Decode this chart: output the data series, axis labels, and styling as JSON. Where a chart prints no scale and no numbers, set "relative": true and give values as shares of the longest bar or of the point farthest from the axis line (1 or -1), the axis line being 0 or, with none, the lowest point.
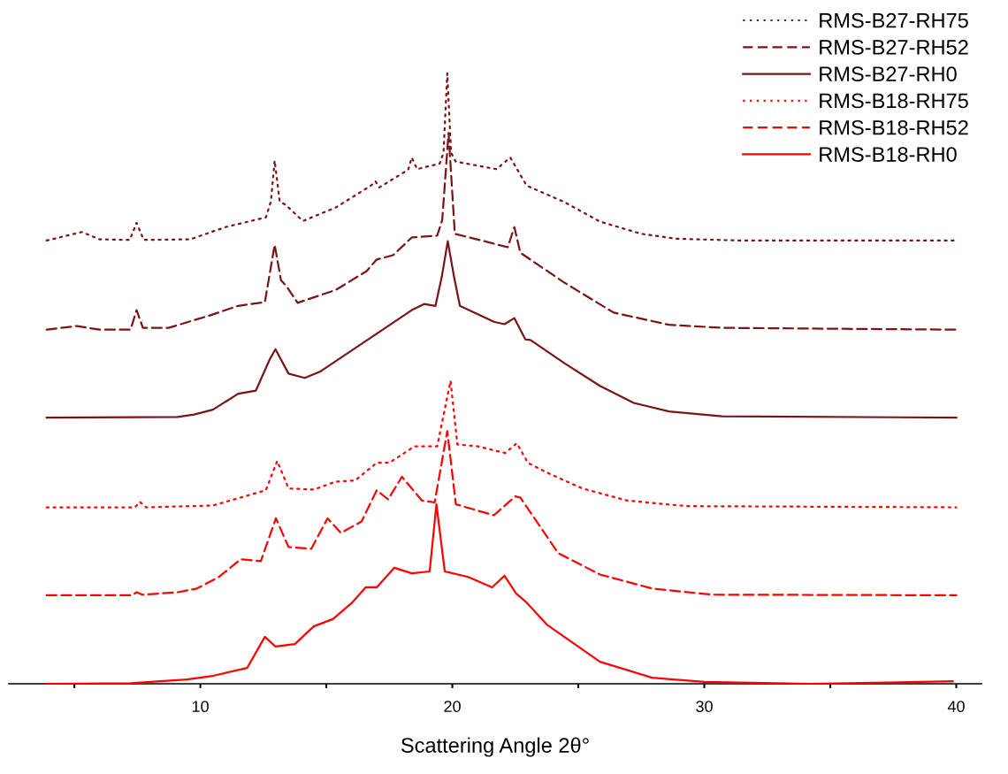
{
  "chart_data": {
    "type": "line",
    "relative": true,
    "xlabel": "Scattering Angle 2θ°",
    "xlim": [
      2.4,
      41.0
    ],
    "xticks": [
      {
        "value": 5,
        "label": null
      },
      10,
      {
        "value": 15,
        "label": null
      },
      20,
      {
        "value": 25,
        "label": null
      },
      30,
      {
        "value": 35,
        "label": null
      },
      40
    ],
    "legend": "top right",
    "grid": false,
    "tick_labels": "x",
    "series": [
      {
        "name": "RMS-B27-RH75",
        "color": "#7b1416",
        "line_style": "dotted",
        "x": [
          3.9,
          5.3,
          6.0,
          7.2,
          7.47,
          7.75,
          9.6,
          11.0,
          12.6,
          12.8,
          12.95,
          13.15,
          13.4,
          14.07,
          15.37,
          16.77,
          16.95,
          17.1,
          18.25,
          18.39,
          18.6,
          19.5,
          19.65,
          19.8,
          19.95,
          20.14,
          20.3,
          21.75,
          22.3,
          22.95,
          24.45,
          25.86,
          27.5,
          28.9,
          31.4,
          40.0
        ],
        "values": [
          0.726,
          0.74,
          0.728,
          0.727,
          0.755,
          0.727,
          0.728,
          0.748,
          0.764,
          0.79,
          0.857,
          0.79,
          0.784,
          0.758,
          0.78,
          0.816,
          0.823,
          0.813,
          0.842,
          0.862,
          0.843,
          0.852,
          0.87,
          1.0,
          0.87,
          0.855,
          0.854,
          0.843,
          0.862,
          0.816,
          0.789,
          0.757,
          0.737,
          0.729,
          0.726,
          0.726
        ]
      },
      {
        "name": "RMS-B27-RH52",
        "color": "#7b1416",
        "line_style": "dashed",
        "x": [
          3.9,
          5.1,
          6.0,
          7.23,
          7.47,
          7.72,
          8.74,
          10.35,
          11.5,
          12.56,
          12.95,
          13.2,
          13.44,
          13.86,
          15.37,
          16.6,
          17.0,
          17.65,
          18.39,
          19.4,
          19.6,
          19.85,
          20.1,
          21.26,
          22.2,
          22.46,
          22.7,
          24.45,
          26.4,
          28.6,
          30.7,
          40.0
        ],
        "values": [
          0.58,
          0.586,
          0.58,
          0.58,
          0.612,
          0.583,
          0.583,
          0.603,
          0.619,
          0.625,
          0.719,
          0.661,
          0.65,
          0.624,
          0.645,
          0.676,
          0.695,
          0.702,
          0.731,
          0.734,
          0.76,
          0.902,
          0.737,
          0.725,
          0.715,
          0.748,
          0.706,
          0.657,
          0.608,
          0.588,
          0.583,
          0.58
        ]
      },
      {
        "name": "RMS-B27-RH0",
        "color": "#7b1416",
        "line_style": "solid",
        "x": [
          3.9,
          9.1,
          9.75,
          10.5,
          11.5,
          12.2,
          12.75,
          12.98,
          13.5,
          14.14,
          14.74,
          16.77,
          18.39,
          18.88,
          19.33,
          19.58,
          19.82,
          20.07,
          20.3,
          21.65,
          22.07,
          22.46,
          22.9,
          23.1,
          24.45,
          25.86,
          27.2,
          28.6,
          30.7,
          40.0
        ],
        "values": [
          0.436,
          0.437,
          0.441,
          0.449,
          0.475,
          0.48,
          0.531,
          0.548,
          0.508,
          0.501,
          0.511,
          0.567,
          0.612,
          0.622,
          0.619,
          0.666,
          0.725,
          0.666,
          0.619,
          0.593,
          0.589,
          0.599,
          0.564,
          0.563,
          0.525,
          0.488,
          0.46,
          0.446,
          0.438,
          0.436
        ]
      },
      {
        "name": "RMS-B18-RH75",
        "color": "#ff0000",
        "line_style": "dotted",
        "x": [
          3.9,
          7.4,
          7.6,
          7.85,
          10.5,
          12.6,
          13.05,
          13.5,
          14.5,
          15.37,
          16.14,
          17.0,
          17.5,
          18.5,
          19.4,
          19.93,
          20.2,
          21.0,
          22.1,
          22.56,
          23.0,
          23.75,
          25.16,
          26.95,
          29.3,
          40.0
        ],
        "values": [
          0.289,
          0.289,
          0.298,
          0.289,
          0.292,
          0.317,
          0.365,
          0.32,
          0.318,
          0.331,
          0.333,
          0.362,
          0.362,
          0.389,
          0.389,
          0.496,
          0.392,
          0.389,
          0.378,
          0.394,
          0.362,
          0.346,
          0.32,
          0.3,
          0.291,
          0.289
        ]
      },
      {
        "name": "RMS-B18-RH52",
        "color": "#ff0000",
        "line_style": "dashed",
        "x": [
          3.9,
          7.3,
          7.47,
          7.7,
          9.12,
          9.86,
          10.74,
          11.6,
          12.4,
          13.0,
          13.5,
          14.4,
          15.05,
          15.58,
          16.4,
          17.0,
          17.45,
          18.0,
          18.8,
          19.3,
          19.8,
          20.14,
          21.65,
          22.5,
          22.7,
          24.2,
          25.86,
          27.93,
          30.3,
          40.0
        ],
        "values": [
          0.145,
          0.145,
          0.15,
          0.146,
          0.15,
          0.156,
          0.175,
          0.204,
          0.201,
          0.271,
          0.224,
          0.221,
          0.271,
          0.247,
          0.266,
          0.317,
          0.302,
          0.339,
          0.3,
          0.297,
          0.414,
          0.294,
          0.276,
          0.307,
          0.305,
          0.214,
          0.179,
          0.156,
          0.146,
          0.145
        ]
      },
      {
        "name": "RMS-B18-RH0",
        "color": "#ff0000",
        "line_style": "solid",
        "x": [
          3.9,
          7.23,
          9.47,
          10.5,
          11.86,
          12.56,
          12.98,
          13.75,
          14.5,
          15.26,
          16.0,
          16.56,
          17.0,
          17.7,
          18.39,
          19.1,
          19.37,
          19.7,
          20.63,
          21.58,
          22.07,
          22.53,
          22.95,
          23.75,
          25.86,
          27.93,
          30.0,
          34.2,
          39.86
        ],
        "values": [
          0.0,
          0.001,
          0.007,
          0.013,
          0.026,
          0.077,
          0.061,
          0.065,
          0.094,
          0.106,
          0.132,
          0.158,
          0.158,
          0.19,
          0.181,
          0.184,
          0.294,
          0.184,
          0.175,
          0.158,
          0.177,
          0.148,
          0.133,
          0.097,
          0.036,
          0.01,
          0.003,
          0.0,
          0.004
        ]
      }
    ]
  }
}
